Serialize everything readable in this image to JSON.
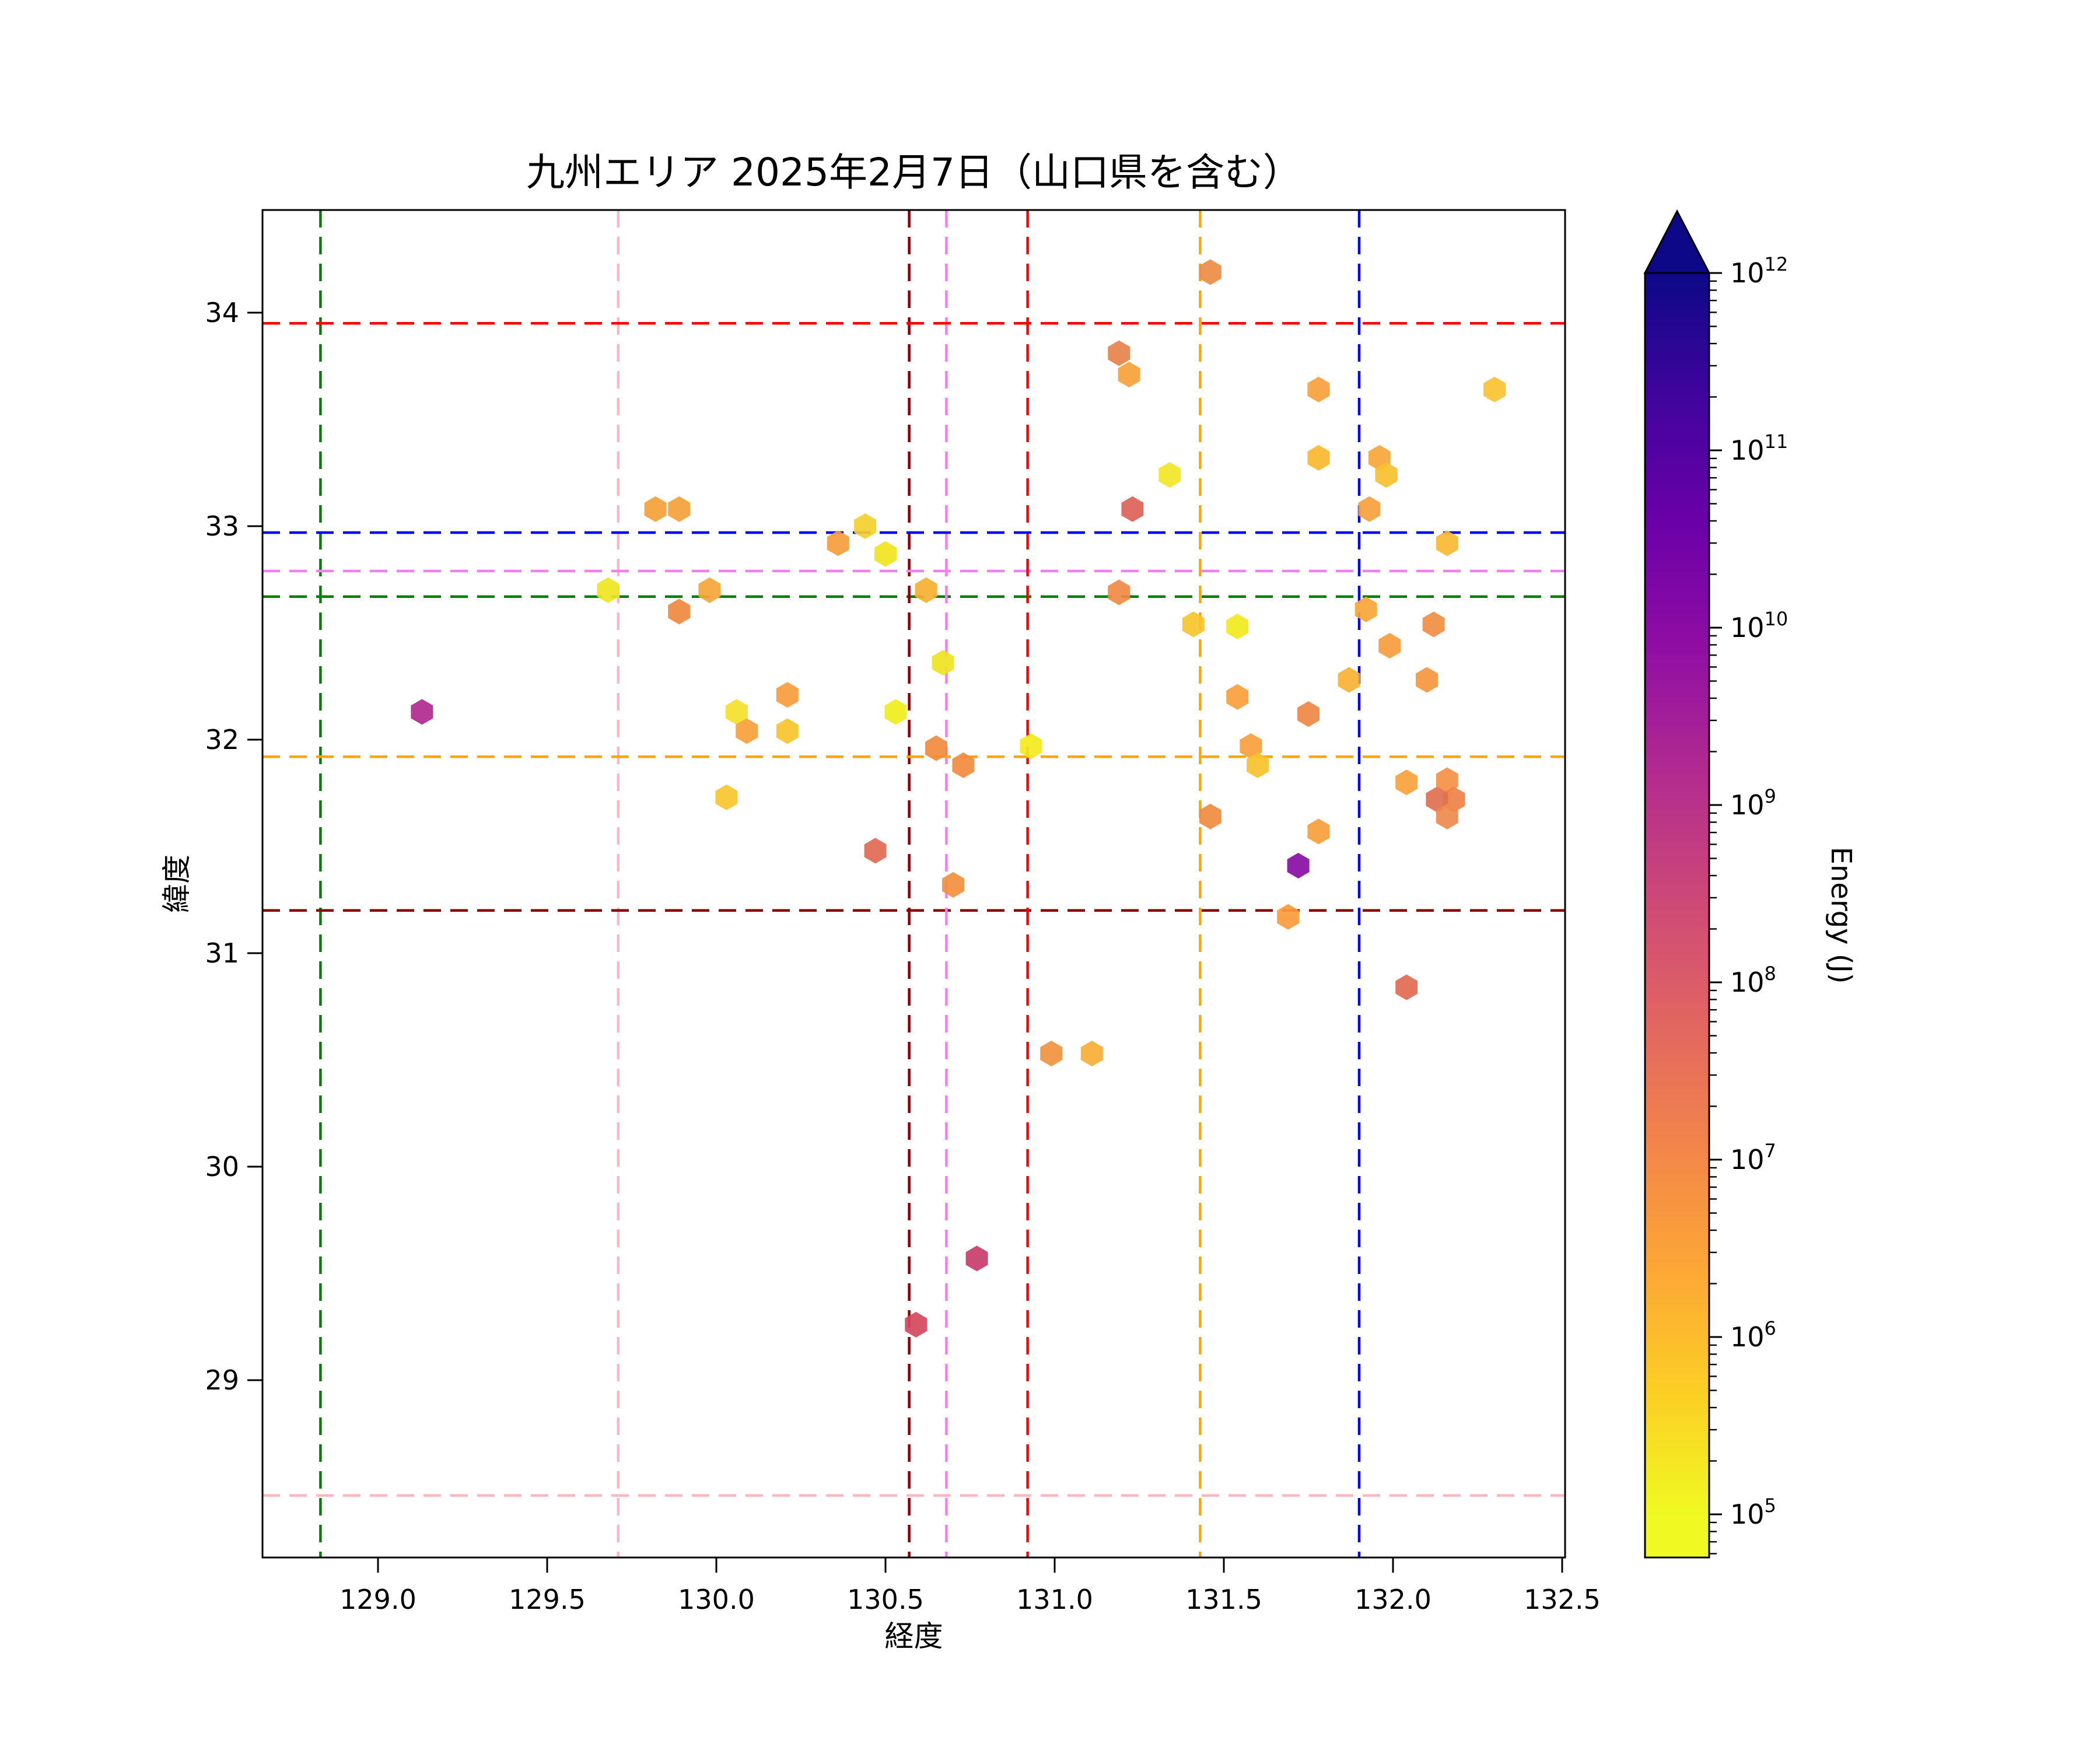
{
  "title": "九州エリア 2025年2月7日（山口県を含む）",
  "chart_data": {
    "type": "scatter",
    "marker": "hexagon",
    "xlabel": "経度",
    "ylabel": "緯度",
    "xlim": [
      128.66,
      132.51
    ],
    "ylim": [
      28.17,
      34.48
    ],
    "xticks": [
      "129.0",
      "129.5",
      "130.0",
      "130.5",
      "131.0",
      "131.5",
      "132.0",
      "132.5"
    ],
    "yticks": [
      "34",
      "33",
      "32",
      "31",
      "30",
      "29"
    ],
    "grid": false,
    "colorbar": {
      "label": "Energy (J)",
      "scale": "log",
      "colormap": "plasma_r",
      "extend": "max",
      "tick_exponents": [
        12,
        11,
        10,
        9,
        8,
        7,
        6,
        5
      ],
      "tick_base": "10",
      "gradient_top_to_bottom": [
        "#0d0887",
        "#41049d",
        "#6a00a8",
        "#8f0da4",
        "#b12a90",
        "#cc4778",
        "#e16462",
        "#f2844b",
        "#fca636",
        "#fcce25",
        "#f0f921"
      ],
      "arrow_color": "#0d0887"
    },
    "reference_lines": [
      {
        "name": "green-crosshair",
        "color": "#008000",
        "lon": 128.83,
        "lat": 32.67
      },
      {
        "name": "pink-crosshair",
        "color": "#ffb6c1",
        "lon": 129.71,
        "lat": 28.46
      },
      {
        "name": "darkred-crosshair",
        "color": "#8b0000",
        "lon": 130.57,
        "lat": 31.2
      },
      {
        "name": "violet-crosshair",
        "color": "#ee82ee",
        "lon": 130.68,
        "lat": 32.79
      },
      {
        "name": "red-crosshair",
        "color": "#ff0000",
        "lon": 130.92,
        "lat": 33.95
      },
      {
        "name": "orange-crosshair",
        "color": "#ffa500",
        "lon": 131.43,
        "lat": 31.92
      },
      {
        "name": "blue-crosshair",
        "color": "#0000ff",
        "lon": 131.9,
        "lat": 32.97
      }
    ],
    "points": [
      {
        "lon": 129.82,
        "lat": 33.08,
        "color": "#f5a038",
        "energy_j": "2e6"
      },
      {
        "lon": 129.89,
        "lat": 33.08,
        "color": "#f5a038",
        "energy_j": "2e6"
      },
      {
        "lon": 130.44,
        "lat": 33.0,
        "color": "#f3cf2b",
        "energy_j": "5e5"
      },
      {
        "lon": 130.36,
        "lat": 32.92,
        "color": "#f59d3b",
        "energy_j": "3e6"
      },
      {
        "lon": 130.5,
        "lat": 32.87,
        "color": "#f2e41f",
        "energy_j": "2e5"
      },
      {
        "lon": 129.68,
        "lat": 32.7,
        "color": "#eee51f",
        "energy_j": "2e5"
      },
      {
        "lon": 129.98,
        "lat": 32.7,
        "color": "#f6a637",
        "energy_j": "2e6"
      },
      {
        "lon": 129.89,
        "lat": 32.6,
        "color": "#f0883f",
        "energy_j": "8e6"
      },
      {
        "lon": 130.62,
        "lat": 32.7,
        "color": "#f6b02f",
        "energy_j": "1.2e6"
      },
      {
        "lon": 131.46,
        "lat": 34.19,
        "color": "#ed8c45",
        "energy_j": "1e7"
      },
      {
        "lon": 131.19,
        "lat": 33.81,
        "color": "#e8824b",
        "energy_j": "1.5e7"
      },
      {
        "lon": 131.22,
        "lat": 33.71,
        "color": "#f7a237",
        "energy_j": "2.5e6"
      },
      {
        "lon": 131.78,
        "lat": 33.64,
        "color": "#f7a03b",
        "energy_j": "2.5e6"
      },
      {
        "lon": 132.3,
        "lat": 33.64,
        "color": "#f9c232",
        "energy_j": "7e5"
      },
      {
        "lon": 131.78,
        "lat": 33.32,
        "color": "#f9b82e",
        "energy_j": "1e6"
      },
      {
        "lon": 131.96,
        "lat": 33.32,
        "color": "#f9a63a",
        "energy_j": "2e6"
      },
      {
        "lon": 131.98,
        "lat": 33.24,
        "color": "#f9c02e",
        "energy_j": "8e5"
      },
      {
        "lon": 131.34,
        "lat": 33.24,
        "color": "#f2e526",
        "energy_j": "2e5"
      },
      {
        "lon": 131.23,
        "lat": 33.08,
        "color": "#dc6257",
        "energy_j": "6e7"
      },
      {
        "lon": 131.93,
        "lat": 33.08,
        "color": "#f9a03c",
        "energy_j": "2.5e6"
      },
      {
        "lon": 132.16,
        "lat": 32.92,
        "color": "#f9b832",
        "energy_j": "1e6"
      },
      {
        "lon": 131.19,
        "lat": 32.69,
        "color": "#f08a44",
        "energy_j": "8e6"
      },
      {
        "lon": 131.41,
        "lat": 32.54,
        "color": "#f8c42c",
        "energy_j": "6e5"
      },
      {
        "lon": 131.54,
        "lat": 32.53,
        "color": "#f2e91d",
        "energy_j": "1.6e5"
      },
      {
        "lon": 131.92,
        "lat": 32.61,
        "color": "#f9a637",
        "energy_j": "2e6"
      },
      {
        "lon": 132.12,
        "lat": 32.54,
        "color": "#f08e42",
        "energy_j": "7e6"
      },
      {
        "lon": 131.99,
        "lat": 32.44,
        "color": "#f79c3d",
        "energy_j": "3e6"
      },
      {
        "lon": 132.1,
        "lat": 32.28,
        "color": "#f5953f",
        "energy_j": "4e6"
      },
      {
        "lon": 131.87,
        "lat": 32.28,
        "color": "#f9b134",
        "energy_j": "1.1e6"
      },
      {
        "lon": 131.54,
        "lat": 32.2,
        "color": "#f89f3b",
        "energy_j": "2.5e6"
      },
      {
        "lon": 131.75,
        "lat": 32.12,
        "color": "#ee8745",
        "energy_j": "1.2e7"
      },
      {
        "lon": 130.93,
        "lat": 31.97,
        "color": "#f3ea1c",
        "energy_j": "1.5e5"
      },
      {
        "lon": 131.58,
        "lat": 31.97,
        "color": "#f89f3b",
        "energy_j": "2.5e6"
      },
      {
        "lon": 131.6,
        "lat": 31.88,
        "color": "#f8c22d",
        "energy_j": "6e5"
      },
      {
        "lon": 132.04,
        "lat": 31.8,
        "color": "#f9a13c",
        "energy_j": "2.5e6"
      },
      {
        "lon": 132.16,
        "lat": 31.81,
        "color": "#f59045",
        "energy_j": "5e6"
      },
      {
        "lon": 132.18,
        "lat": 31.72,
        "color": "#f08148",
        "energy_j": "1e7"
      },
      {
        "lon": 132.13,
        "lat": 31.72,
        "color": "#e07050",
        "energy_j": "4e7"
      },
      {
        "lon": 132.16,
        "lat": 31.64,
        "color": "#ef8a4c",
        "energy_j": "8e6"
      },
      {
        "lon": 131.46,
        "lat": 31.64,
        "color": "#f08b41",
        "energy_j": "8e6"
      },
      {
        "lon": 131.78,
        "lat": 31.57,
        "color": "#f89e3b",
        "energy_j": "2.5e6"
      },
      {
        "lon": 131.72,
        "lat": 31.41,
        "color": "#8a0da4",
        "energy_j": "1e10"
      },
      {
        "lon": 131.69,
        "lat": 31.17,
        "color": "#f89b3c",
        "energy_j": "2.5e6"
      },
      {
        "lon": 132.04,
        "lat": 30.84,
        "color": "#e06a50",
        "energy_j": "4e7"
      },
      {
        "lon": 129.13,
        "lat": 32.13,
        "color": "#b02a8f",
        "energy_j": "1.6e9"
      },
      {
        "lon": 130.06,
        "lat": 32.13,
        "color": "#f4e029",
        "energy_j": "3e5"
      },
      {
        "lon": 130.21,
        "lat": 32.21,
        "color": "#f89c3c",
        "energy_j": "3e6"
      },
      {
        "lon": 130.09,
        "lat": 32.04,
        "color": "#f9a13a",
        "energy_j": "2.5e6"
      },
      {
        "lon": 130.21,
        "lat": 32.04,
        "color": "#f8c42c",
        "energy_j": "6e5"
      },
      {
        "lon": 130.53,
        "lat": 32.13,
        "color": "#f0ed1b",
        "energy_j": "1.5e5"
      },
      {
        "lon": 130.67,
        "lat": 32.36,
        "color": "#efe420",
        "energy_j": "2e5"
      },
      {
        "lon": 130.65,
        "lat": 31.96,
        "color": "#f28b3f",
        "energy_j": "8e6"
      },
      {
        "lon": 130.73,
        "lat": 31.88,
        "color": "#f28b3f",
        "energy_j": "8e6"
      },
      {
        "lon": 130.03,
        "lat": 31.73,
        "color": "#f8c42e",
        "energy_j": "6e5"
      },
      {
        "lon": 130.47,
        "lat": 31.48,
        "color": "#e06a52",
        "energy_j": "4e7"
      },
      {
        "lon": 130.7,
        "lat": 31.32,
        "color": "#f2903e",
        "energy_j": "6e6"
      },
      {
        "lon": 130.77,
        "lat": 29.57,
        "color": "#c73e6b",
        "energy_j": "4e8"
      },
      {
        "lon": 130.59,
        "lat": 29.26,
        "color": "#d5485c",
        "energy_j": "2e8"
      },
      {
        "lon": 130.99,
        "lat": 30.53,
        "color": "#f0923f",
        "energy_j": "6e6"
      },
      {
        "lon": 131.11,
        "lat": 30.53,
        "color": "#f9ae36",
        "energy_j": "1.5e6"
      }
    ]
  }
}
